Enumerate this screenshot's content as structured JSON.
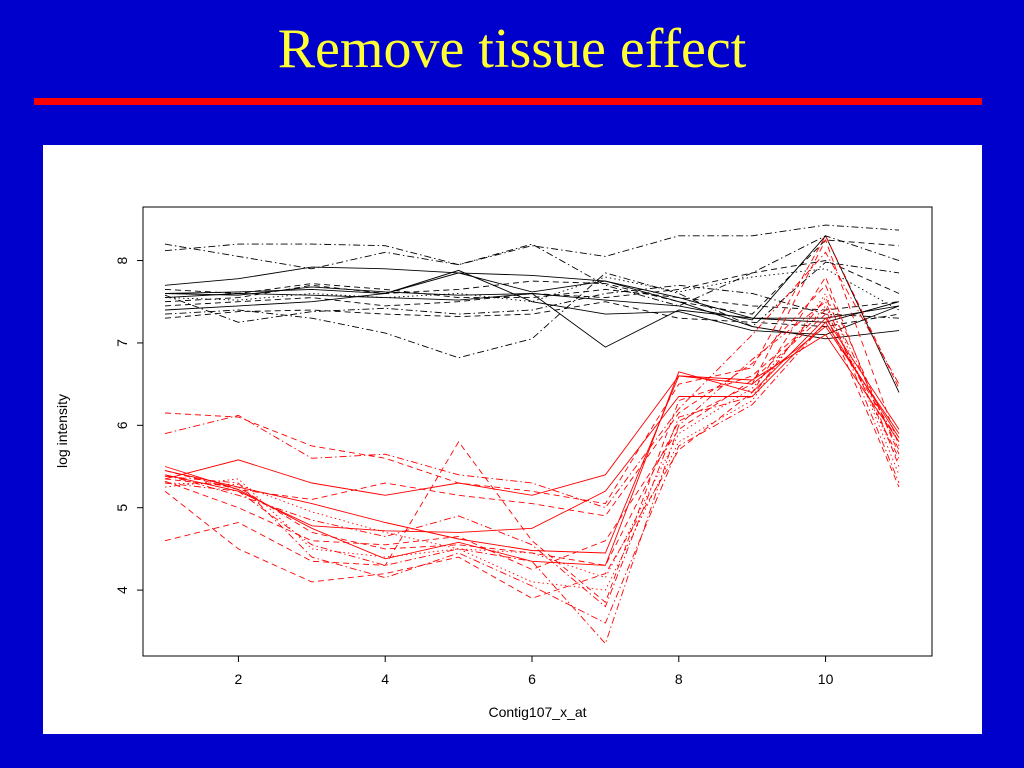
{
  "slide": {
    "title": "Remove tissue effect",
    "background_color": "#0000cc",
    "title_color": "#ffff33",
    "rule_color": "#ff0000"
  },
  "chart_data": {
    "type": "line",
    "title": "",
    "xlabel": "Contig107_x_at",
    "ylabel": "log intensity",
    "x": [
      1,
      2,
      3,
      4,
      5,
      6,
      7,
      8,
      9,
      10,
      11
    ],
    "xlim": [
      0.7,
      11.45
    ],
    "ylim": [
      3.2,
      8.65
    ],
    "xticks": [
      2,
      4,
      6,
      8,
      10
    ],
    "yticks": [
      4,
      5,
      6,
      7,
      8
    ],
    "grid": false,
    "legend": "none",
    "series": [
      {
        "group": "black",
        "color": "#000000",
        "dash": "solid",
        "values": [
          7.6,
          7.62,
          7.65,
          7.6,
          7.85,
          7.62,
          7.75,
          7.55,
          7.3,
          7.3,
          7.45
        ]
      },
      {
        "group": "black",
        "color": "#000000",
        "dash": "solid",
        "values": [
          7.7,
          7.78,
          7.92,
          7.9,
          7.85,
          7.82,
          7.75,
          7.5,
          7.2,
          7.05,
          7.15
        ]
      },
      {
        "group": "black",
        "color": "#000000",
        "dash": "solid",
        "values": [
          7.55,
          7.6,
          7.58,
          7.55,
          7.52,
          7.6,
          6.95,
          7.4,
          7.3,
          7.25,
          7.5
        ]
      },
      {
        "group": "black",
        "color": "#000000",
        "dash": "solid",
        "values": [
          7.4,
          7.45,
          7.5,
          7.6,
          7.88,
          7.5,
          7.35,
          7.38,
          7.15,
          7.1,
          7.45
        ]
      },
      {
        "group": "black",
        "color": "#000000",
        "dash": "dashdot",
        "values": [
          8.2,
          8.05,
          7.9,
          8.1,
          7.95,
          8.2,
          7.7,
          7.45,
          7.85,
          8.3,
          8.0
        ]
      },
      {
        "group": "black",
        "color": "#000000",
        "dash": "dashdot",
        "values": [
          8.12,
          8.2,
          8.2,
          8.18,
          7.95,
          8.18,
          8.05,
          8.3,
          8.3,
          8.43,
          8.37
        ]
      },
      {
        "group": "black",
        "color": "#000000",
        "dash": "dashdot",
        "values": [
          7.35,
          7.4,
          7.3,
          7.12,
          6.82,
          7.05,
          7.85,
          7.6,
          7.2,
          7.98,
          7.85
        ]
      },
      {
        "group": "black",
        "color": "#000000",
        "dash": "dashed",
        "values": [
          7.65,
          7.6,
          7.72,
          7.65,
          7.55,
          7.55,
          7.65,
          7.55,
          7.45,
          7.4,
          7.5
        ]
      },
      {
        "group": "black",
        "color": "#000000",
        "dash": "dashed",
        "values": [
          7.45,
          7.5,
          7.55,
          7.45,
          7.5,
          7.6,
          7.55,
          7.65,
          7.85,
          8.0,
          7.6
        ]
      },
      {
        "group": "black",
        "color": "#000000",
        "dash": "dashed",
        "values": [
          7.3,
          7.38,
          7.4,
          7.35,
          7.32,
          7.35,
          7.5,
          7.3,
          7.25,
          7.2,
          7.35
        ]
      },
      {
        "group": "black",
        "color": "#000000",
        "dash": "dotted",
        "values": [
          7.55,
          7.52,
          7.6,
          7.55,
          7.6,
          7.5,
          7.8,
          7.62,
          7.8,
          7.9,
          7.4
        ]
      },
      {
        "group": "black",
        "color": "#000000",
        "dash": "dashdot",
        "values": [
          7.58,
          7.25,
          7.38,
          7.42,
          7.35,
          7.4,
          7.6,
          7.7,
          7.6,
          7.35,
          7.3
        ]
      },
      {
        "group": "black",
        "color": "#000000",
        "dash": "dashed",
        "values": [
          7.5,
          7.55,
          7.7,
          7.6,
          7.65,
          7.75,
          7.72,
          7.5,
          7.35,
          8.25,
          8.18
        ]
      },
      {
        "group": "black",
        "color": "#000000",
        "dash": "solid",
        "values": [
          7.6,
          7.58,
          7.68,
          7.62,
          7.58,
          7.6,
          7.52,
          7.45,
          7.28,
          8.3,
          6.4
        ]
      },
      {
        "group": "red",
        "color": "#ff0000",
        "dash": "solid",
        "values": [
          5.35,
          5.58,
          5.3,
          5.15,
          5.3,
          5.15,
          5.4,
          6.6,
          6.5,
          7.2,
          5.9
        ]
      },
      {
        "group": "red",
        "color": "#ff0000",
        "dash": "solid",
        "values": [
          5.4,
          5.2,
          4.78,
          4.72,
          4.7,
          4.75,
          5.2,
          6.35,
          6.35,
          7.25,
          5.85
        ]
      },
      {
        "group": "red",
        "color": "#ff0000",
        "dash": "solid",
        "values": [
          5.45,
          5.25,
          5.05,
          4.82,
          4.62,
          4.48,
          4.45,
          6.6,
          6.55,
          7.1,
          5.8
        ]
      },
      {
        "group": "red",
        "color": "#ff0000",
        "dash": "solid",
        "values": [
          5.5,
          5.22,
          4.75,
          4.38,
          4.58,
          4.35,
          4.3,
          6.65,
          6.4,
          7.3,
          5.95
        ]
      },
      {
        "group": "red",
        "color": "#ff0000",
        "dash": "dashed",
        "values": [
          6.15,
          6.1,
          5.75,
          5.6,
          5.3,
          5.2,
          5.05,
          6.5,
          6.7,
          8.3,
          6.45
        ]
      },
      {
        "group": "red",
        "color": "#ff0000",
        "dash": "dashdot",
        "values": [
          5.9,
          6.12,
          5.6,
          5.65,
          5.4,
          5.3,
          5.0,
          6.2,
          7.1,
          8.1,
          6.5
        ]
      },
      {
        "group": "red",
        "color": "#ff0000",
        "dash": "dashed",
        "values": [
          4.6,
          4.82,
          4.35,
          4.3,
          5.8,
          4.6,
          3.85,
          6.3,
          6.6,
          7.4,
          5.6
        ]
      },
      {
        "group": "red",
        "color": "#ff0000",
        "dash": "dashdot",
        "values": [
          5.3,
          5.2,
          4.55,
          4.3,
          4.5,
          4.35,
          3.35,
          6.0,
          6.8,
          7.5,
          5.3
        ]
      },
      {
        "group": "red",
        "color": "#ff0000",
        "dash": "dashed",
        "values": [
          5.2,
          4.5,
          4.1,
          4.2,
          4.4,
          3.9,
          4.2,
          5.7,
          6.4,
          7.8,
          5.5
        ]
      },
      {
        "group": "red",
        "color": "#ff0000",
        "dash": "dotted",
        "values": [
          5.25,
          5.35,
          4.5,
          4.4,
          4.5,
          4.1,
          4.0,
          5.8,
          6.3,
          7.6,
          5.4
        ]
      },
      {
        "group": "red",
        "color": "#ff0000",
        "dash": "dashed",
        "values": [
          5.32,
          5.0,
          4.6,
          4.55,
          4.65,
          4.25,
          4.6,
          5.95,
          6.55,
          7.35,
          5.25
        ]
      },
      {
        "group": "red",
        "color": "#ff0000",
        "dash": "dashdot",
        "values": [
          5.4,
          5.15,
          4.85,
          4.65,
          4.9,
          4.55,
          3.8,
          6.1,
          6.35,
          7.55,
          5.7
        ]
      },
      {
        "group": "red",
        "color": "#ff0000",
        "dash": "dotted",
        "values": [
          5.3,
          5.28,
          4.95,
          4.7,
          4.5,
          4.45,
          4.15,
          5.9,
          6.45,
          7.45,
          5.55
        ]
      },
      {
        "group": "red",
        "color": "#ff0000",
        "dash": "dashed",
        "values": [
          5.45,
          5.22,
          5.1,
          5.3,
          5.15,
          5.05,
          4.9,
          6.15,
          6.75,
          7.7,
          5.65
        ]
      },
      {
        "group": "red",
        "color": "#ff0000",
        "dash": "dashdot",
        "values": [
          5.38,
          5.3,
          4.4,
          4.15,
          4.45,
          4.05,
          3.6,
          5.75,
          6.25,
          7.25,
          5.8
        ]
      },
      {
        "group": "red",
        "color": "#ff0000",
        "dash": "dashed",
        "values": [
          5.35,
          5.25,
          4.7,
          4.5,
          4.55,
          4.45,
          4.3,
          6.05,
          6.5,
          8.25,
          5.75
        ]
      }
    ]
  }
}
